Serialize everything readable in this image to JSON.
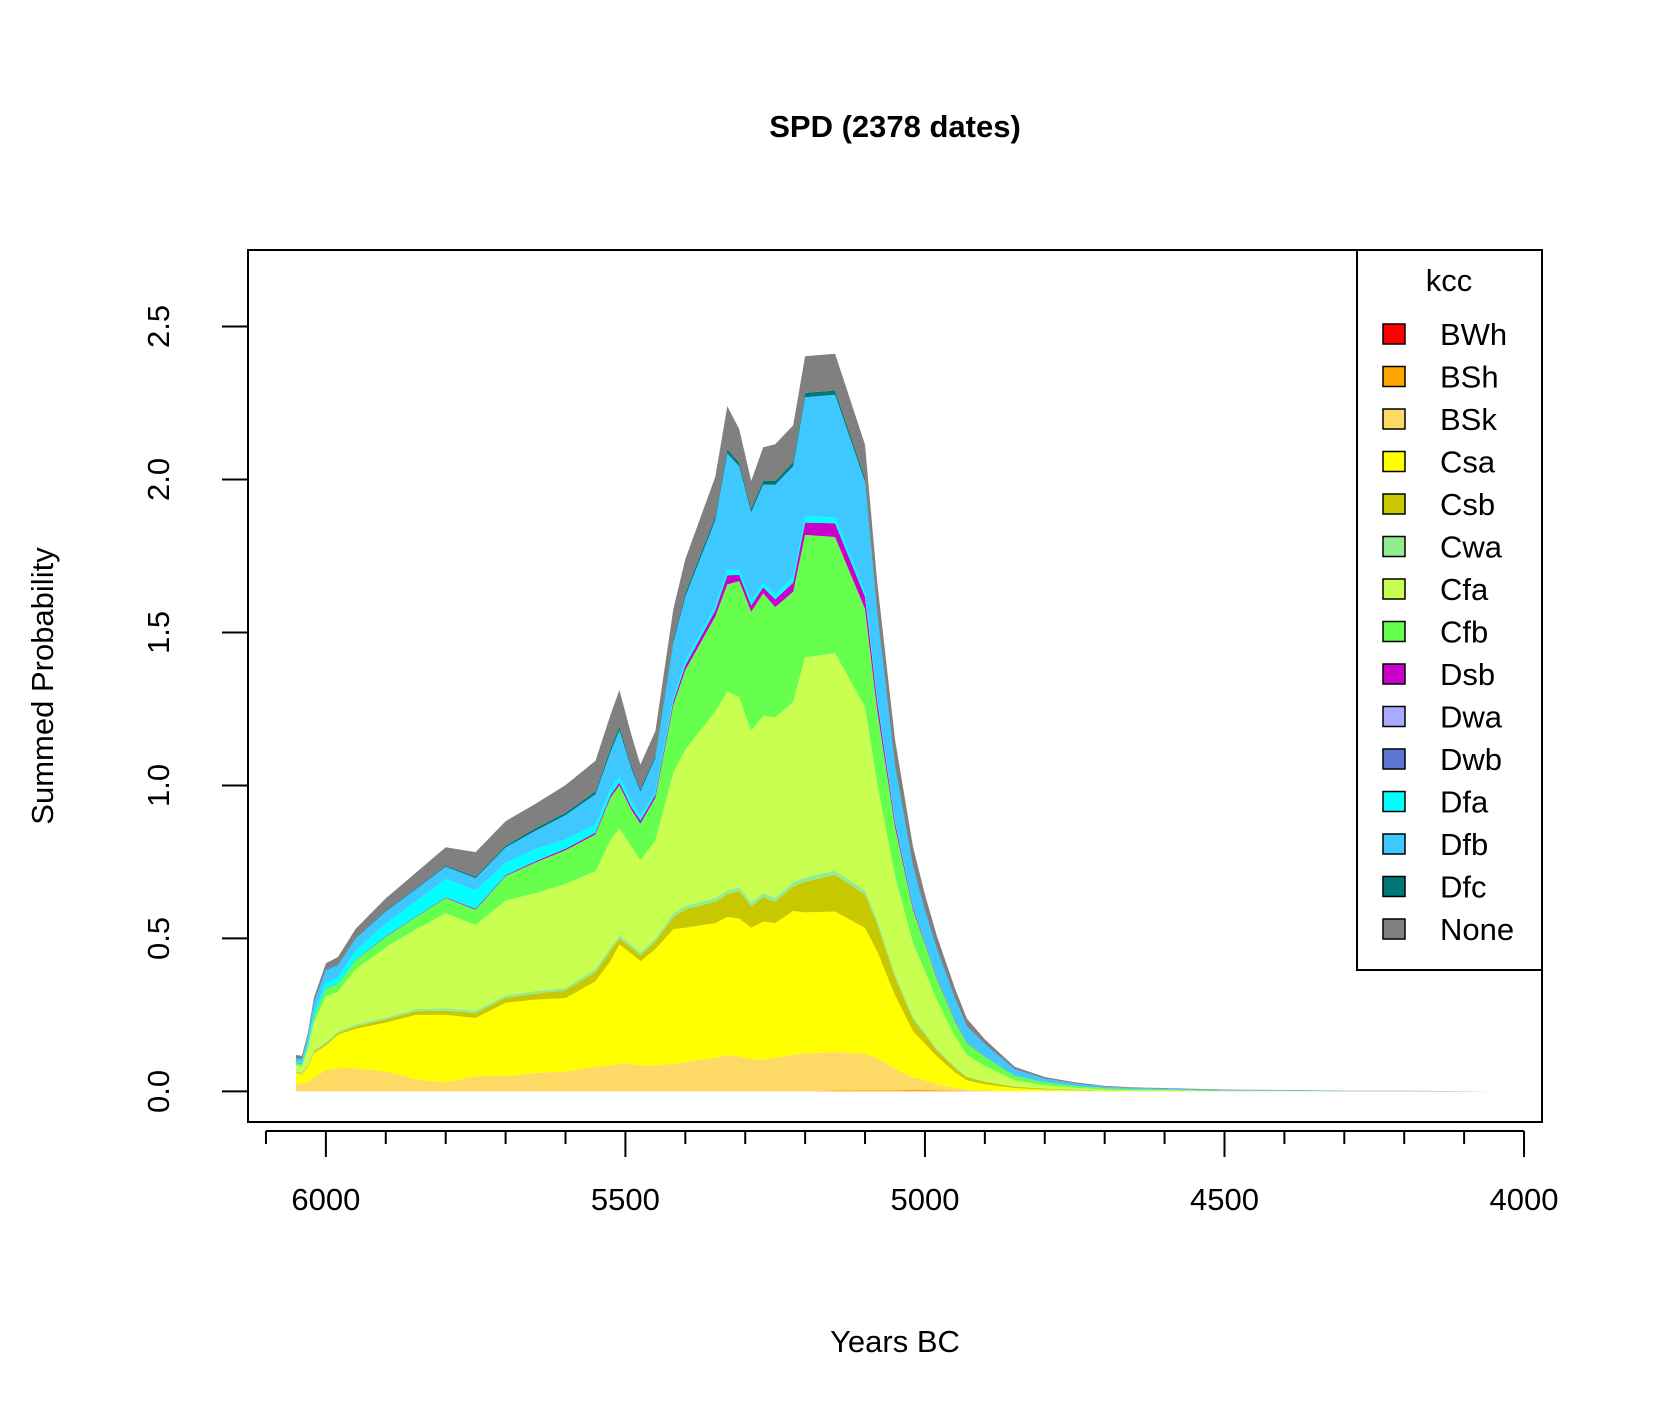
{
  "chart_data": {
    "type": "area",
    "stacked": true,
    "title": "SPD (2378 dates)",
    "xlabel": "Years BC",
    "ylabel": "Summed Probability",
    "xlim": [
      6130,
      3970
    ],
    "ylim": [
      -0.1,
      2.75
    ],
    "x_ticks": [
      6000,
      5500,
      5000,
      4500,
      4000
    ],
    "x_tick_labels": [
      "6000",
      "5500",
      "5000",
      "4500",
      "4000"
    ],
    "y_ticks": [
      0.0,
      0.5,
      1.0,
      1.5,
      2.0,
      2.5
    ],
    "y_tick_labels": [
      "0.0",
      "0.5",
      "1.0",
      "1.5",
      "2.0",
      "2.5"
    ],
    "x_minor_ticks": [
      6100,
      5900,
      5800,
      5700,
      5600,
      5400,
      5300,
      5200,
      5100,
      4900,
      4800,
      4700,
      4600,
      4400,
      4300,
      4200,
      4100
    ],
    "legend": {
      "title": "kcc",
      "position": "top-right"
    },
    "x": [
      6050,
      6040,
      6030,
      6020,
      6000,
      5980,
      5950,
      5900,
      5850,
      5800,
      5750,
      5700,
      5650,
      5600,
      5550,
      5525,
      5510,
      5490,
      5475,
      5450,
      5420,
      5400,
      5350,
      5330,
      5310,
      5290,
      5270,
      5250,
      5220,
      5200,
      5150,
      5100,
      5080,
      5050,
      5020,
      5000,
      4980,
      4950,
      4930,
      4900,
      4850,
      4800,
      4750,
      4700,
      4650,
      4600,
      4500,
      4400,
      4300,
      4200,
      4100,
      4050
    ],
    "series": [
      {
        "name": "BWh",
        "color": "#ff0000",
        "values": [
          0,
          0,
          0,
          0,
          0,
          0,
          0,
          0,
          0,
          0,
          0,
          0,
          0,
          0,
          0,
          0,
          0,
          0,
          0,
          0,
          0,
          0,
          0,
          0,
          0,
          0,
          0,
          0,
          0,
          0,
          0,
          0,
          0,
          0,
          0,
          0,
          0,
          0,
          0,
          0,
          0,
          0,
          0,
          0,
          0,
          0,
          0,
          0,
          0,
          0,
          0,
          0
        ]
      },
      {
        "name": "BSh",
        "color": "#ffa500",
        "values": [
          0,
          0,
          0,
          0,
          0,
          0,
          0,
          0,
          0,
          0,
          0,
          0,
          0,
          0,
          0,
          0,
          0,
          0,
          0,
          0,
          0,
          0,
          0,
          0,
          0,
          0,
          0,
          0,
          0,
          0,
          0.003,
          0.004,
          0.004,
          0.004,
          0.006,
          0.006,
          0.004,
          0.002,
          0.001,
          0.001,
          0,
          0,
          0,
          0,
          0,
          0,
          0,
          0,
          0,
          0,
          0,
          0
        ]
      },
      {
        "name": "BSk",
        "color": "#ffd966",
        "values": [
          0.03,
          0.025,
          0.03,
          0.045,
          0.07,
          0.075,
          0.075,
          0.065,
          0.04,
          0.03,
          0.05,
          0.05,
          0.06,
          0.065,
          0.08,
          0.085,
          0.09,
          0.09,
          0.085,
          0.085,
          0.09,
          0.095,
          0.11,
          0.12,
          0.115,
          0.105,
          0.105,
          0.11,
          0.12,
          0.125,
          0.125,
          0.12,
          0.105,
          0.07,
          0.04,
          0.03,
          0.02,
          0.01,
          0.005,
          0.002,
          0.001,
          0.001,
          0.001,
          0,
          0,
          0,
          0,
          0,
          0,
          0,
          0,
          0
        ]
      },
      {
        "name": "Csa",
        "color": "#ffff00",
        "values": [
          0.03,
          0.03,
          0.05,
          0.08,
          0.08,
          0.11,
          0.13,
          0.16,
          0.21,
          0.22,
          0.19,
          0.24,
          0.24,
          0.24,
          0.28,
          0.34,
          0.39,
          0.36,
          0.34,
          0.38,
          0.44,
          0.44,
          0.44,
          0.45,
          0.45,
          0.43,
          0.45,
          0.44,
          0.47,
          0.46,
          0.46,
          0.41,
          0.35,
          0.24,
          0.15,
          0.12,
          0.09,
          0.05,
          0.03,
          0.02,
          0.01,
          0.005,
          0.003,
          0.002,
          0.001,
          0.001,
          0,
          0,
          0,
          0,
          0,
          0
        ]
      },
      {
        "name": "Csb",
        "color": "#c8c800",
        "values": [
          0.003,
          0.003,
          0.004,
          0.005,
          0.006,
          0.006,
          0.008,
          0.01,
          0.012,
          0.014,
          0.016,
          0.016,
          0.02,
          0.025,
          0.03,
          0.035,
          0.02,
          0.02,
          0.02,
          0.025,
          0.04,
          0.06,
          0.07,
          0.075,
          0.09,
          0.07,
          0.08,
          0.07,
          0.08,
          0.1,
          0.12,
          0.11,
          0.09,
          0.06,
          0.04,
          0.03,
          0.02,
          0.015,
          0.01,
          0.008,
          0.004,
          0.003,
          0.002,
          0.001,
          0.001,
          0.001,
          0,
          0,
          0,
          0,
          0,
          0
        ]
      },
      {
        "name": "Cwa",
        "color": "#90ee90",
        "values": [
          0.003,
          0.003,
          0.004,
          0.005,
          0.005,
          0.005,
          0.006,
          0.006,
          0.007,
          0.008,
          0.008,
          0.008,
          0.008,
          0.008,
          0.01,
          0.01,
          0.01,
          0.01,
          0.01,
          0.01,
          0.012,
          0.012,
          0.012,
          0.012,
          0.013,
          0.013,
          0.013,
          0.013,
          0.013,
          0.014,
          0.014,
          0.013,
          0.012,
          0.01,
          0.008,
          0.006,
          0.005,
          0.004,
          0.003,
          0.002,
          0.001,
          0.001,
          0.001,
          0,
          0,
          0,
          0,
          0,
          0,
          0,
          0,
          0
        ]
      },
      {
        "name": "Cfa",
        "color": "#c8ff50",
        "values": [
          0.02,
          0.02,
          0.05,
          0.09,
          0.15,
          0.13,
          0.18,
          0.23,
          0.26,
          0.31,
          0.28,
          0.31,
          0.32,
          0.34,
          0.32,
          0.35,
          0.35,
          0.32,
          0.3,
          0.32,
          0.46,
          0.51,
          0.61,
          0.65,
          0.62,
          0.56,
          0.58,
          0.59,
          0.59,
          0.72,
          0.71,
          0.6,
          0.45,
          0.32,
          0.24,
          0.2,
          0.16,
          0.1,
          0.07,
          0.05,
          0.02,
          0.01,
          0.005,
          0.003,
          0.002,
          0.002,
          0.001,
          0.001,
          0,
          0,
          0,
          0
        ]
      },
      {
        "name": "Cfb",
        "color": "#66ff4d",
        "values": [
          0.008,
          0.008,
          0.012,
          0.018,
          0.025,
          0.025,
          0.03,
          0.035,
          0.04,
          0.05,
          0.05,
          0.08,
          0.1,
          0.11,
          0.12,
          0.14,
          0.14,
          0.12,
          0.12,
          0.14,
          0.22,
          0.26,
          0.31,
          0.35,
          0.38,
          0.39,
          0.4,
          0.36,
          0.36,
          0.4,
          0.38,
          0.32,
          0.24,
          0.16,
          0.11,
          0.09,
          0.07,
          0.05,
          0.04,
          0.03,
          0.015,
          0.01,
          0.006,
          0.004,
          0.003,
          0.002,
          0.001,
          0.001,
          0,
          0,
          0,
          0
        ]
      },
      {
        "name": "Dsb",
        "color": "#cc00cc",
        "values": [
          0.001,
          0.001,
          0.001,
          0.001,
          0.001,
          0.001,
          0.001,
          0.002,
          0.002,
          0.002,
          0.003,
          0.003,
          0.004,
          0.005,
          0.006,
          0.008,
          0.01,
          0.01,
          0.01,
          0.01,
          0.012,
          0.015,
          0.02,
          0.03,
          0.02,
          0.02,
          0.02,
          0.025,
          0.03,
          0.04,
          0.045,
          0.04,
          0.03,
          0.015,
          0.008,
          0.005,
          0.004,
          0.003,
          0.002,
          0.001,
          0.001,
          0,
          0,
          0,
          0,
          0,
          0,
          0,
          0,
          0,
          0,
          0
        ]
      },
      {
        "name": "Dwa",
        "color": "#aaaaff",
        "values": [
          0,
          0,
          0,
          0,
          0,
          0,
          0,
          0,
          0,
          0,
          0,
          0,
          0,
          0,
          0,
          0,
          0,
          0,
          0,
          0,
          0,
          0,
          0,
          0,
          0,
          0,
          0,
          0,
          0,
          0,
          0,
          0,
          0,
          0,
          0,
          0,
          0,
          0,
          0,
          0,
          0,
          0,
          0,
          0,
          0,
          0,
          0,
          0,
          0,
          0,
          0,
          0
        ]
      },
      {
        "name": "Dwb",
        "color": "#5a78d2",
        "values": [
          0,
          0,
          0,
          0,
          0,
          0,
          0,
          0,
          0,
          0,
          0,
          0,
          0,
          0,
          0,
          0,
          0,
          0,
          0,
          0,
          0,
          0,
          0,
          0,
          0,
          0,
          0,
          0,
          0,
          0,
          0,
          0,
          0,
          0,
          0,
          0,
          0,
          0,
          0,
          0,
          0,
          0,
          0,
          0,
          0,
          0,
          0,
          0,
          0,
          0,
          0,
          0
        ]
      },
      {
        "name": "Dfa",
        "color": "#00ffff",
        "values": [
          0.003,
          0.005,
          0.01,
          0.015,
          0.02,
          0.02,
          0.03,
          0.04,
          0.05,
          0.06,
          0.06,
          0.04,
          0.04,
          0.03,
          0.025,
          0.02,
          0.02,
          0.015,
          0.015,
          0.01,
          0.012,
          0.015,
          0.015,
          0.018,
          0.015,
          0.015,
          0.015,
          0.015,
          0.02,
          0.02,
          0.02,
          0.015,
          0.01,
          0.005,
          0.003,
          0.003,
          0.002,
          0.001,
          0.001,
          0,
          0,
          0,
          0,
          0,
          0,
          0,
          0,
          0,
          0,
          0,
          0,
          0
        ]
      },
      {
        "name": "Dfb",
        "color": "#3ec8ff",
        "values": [
          0.01,
          0.01,
          0.02,
          0.03,
          0.04,
          0.04,
          0.04,
          0.04,
          0.04,
          0.04,
          0.04,
          0.05,
          0.06,
          0.08,
          0.1,
          0.12,
          0.15,
          0.11,
          0.08,
          0.11,
          0.18,
          0.21,
          0.28,
          0.38,
          0.34,
          0.29,
          0.32,
          0.36,
          0.36,
          0.39,
          0.4,
          0.36,
          0.28,
          0.18,
          0.13,
          0.1,
          0.09,
          0.07,
          0.05,
          0.04,
          0.02,
          0.012,
          0.008,
          0.005,
          0.004,
          0.003,
          0.002,
          0.002,
          0.001,
          0.001,
          0,
          0
        ]
      },
      {
        "name": "Dfc",
        "color": "#007878",
        "values": [
          0.001,
          0.001,
          0.001,
          0.002,
          0.002,
          0.002,
          0.002,
          0.003,
          0.003,
          0.004,
          0.005,
          0.006,
          0.008,
          0.008,
          0.01,
          0.012,
          0.012,
          0.01,
          0.008,
          0.008,
          0.01,
          0.012,
          0.012,
          0.014,
          0.012,
          0.012,
          0.012,
          0.012,
          0.014,
          0.014,
          0.014,
          0.012,
          0.01,
          0.006,
          0.004,
          0.003,
          0.003,
          0.002,
          0.001,
          0.001,
          0,
          0,
          0,
          0,
          0,
          0,
          0,
          0,
          0,
          0,
          0,
          0
        ]
      },
      {
        "name": "None",
        "color": "#808080",
        "values": [
          0.01,
          0.01,
          0.01,
          0.015,
          0.02,
          0.025,
          0.03,
          0.04,
          0.05,
          0.06,
          0.08,
          0.08,
          0.08,
          0.09,
          0.1,
          0.11,
          0.12,
          0.1,
          0.08,
          0.08,
          0.1,
          0.11,
          0.13,
          0.14,
          0.11,
          0.09,
          0.11,
          0.12,
          0.12,
          0.12,
          0.12,
          0.11,
          0.09,
          0.08,
          0.06,
          0.05,
          0.04,
          0.03,
          0.025,
          0.015,
          0.008,
          0.005,
          0.004,
          0.003,
          0.002,
          0.002,
          0.002,
          0.001,
          0.001,
          0.001,
          0.001,
          0
        ]
      }
    ]
  }
}
